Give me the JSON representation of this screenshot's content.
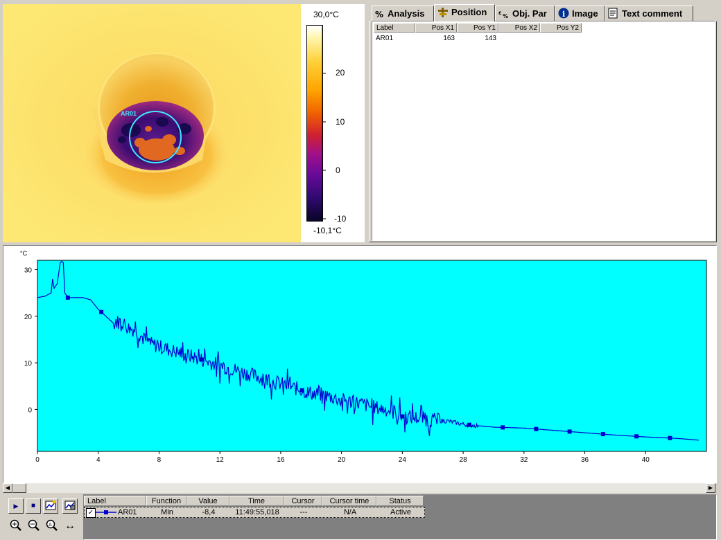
{
  "thermal": {
    "roi_label": "AR01",
    "scale_max": "30,0°C",
    "scale_min": "-10,1°C",
    "scale_ticks": [
      "20",
      "10",
      "0",
      "-10"
    ]
  },
  "tabs": [
    {
      "label": "Analysis",
      "icon": "analysis-icon"
    },
    {
      "label": "Position",
      "icon": "position-icon"
    },
    {
      "label": "Obj. Par",
      "icon": "object-parameters-icon"
    },
    {
      "label": "Image",
      "icon": "info-icon"
    },
    {
      "label": "Text comment",
      "icon": "text-comment-icon"
    }
  ],
  "position_table": {
    "columns": [
      "Label",
      "Pos X1",
      "Pos Y1",
      "Pos X2",
      "Pos Y2"
    ],
    "rows": [
      {
        "label": "AR01",
        "pos_x1": "163",
        "pos_y1": "143",
        "pos_x2": "",
        "pos_y2": ""
      }
    ]
  },
  "chart_data": {
    "type": "line",
    "ylabel": "°C",
    "xlim": [
      0,
      44
    ],
    "ylim": [
      -9,
      32
    ],
    "x_ticks": [
      "0",
      "4",
      "8",
      "12",
      "16",
      "20",
      "24",
      "28",
      "32",
      "36",
      "40"
    ],
    "y_ticks": [
      "30",
      "20",
      "10",
      "0"
    ],
    "background": "#00ffff",
    "line_color": "#0000cc",
    "series": [
      {
        "name": "AR01",
        "x": [
          0,
          0.5,
          0.9,
          1.0,
          1.1,
          1.3,
          1.5,
          1.6,
          1.7,
          1.8,
          1.9,
          2.0,
          2.5,
          3.0,
          3.5,
          4.0,
          4.5,
          5.0,
          5.5,
          6.0,
          6.5,
          7.0,
          7.5,
          8.0,
          8.5,
          9.0,
          9.5,
          10,
          10.5,
          11,
          11.5,
          12,
          13,
          14,
          15,
          16,
          17,
          18,
          19,
          20,
          21,
          22,
          23,
          24,
          25,
          26,
          27,
          28,
          30,
          32,
          34,
          36,
          38,
          40,
          42,
          43.5
        ],
        "y": [
          24,
          24.3,
          25,
          28,
          26,
          27,
          31.5,
          31.8,
          31.5,
          25,
          24.5,
          24,
          24,
          24,
          23.5,
          21.5,
          20,
          18.5,
          19,
          17.5,
          17,
          15,
          14,
          13.5,
          13,
          12.5,
          12,
          11.5,
          11,
          10.5,
          10,
          9.5,
          8.5,
          7.5,
          6.5,
          5.5,
          4.5,
          3.5,
          3.0,
          2.0,
          1.5,
          0.5,
          0,
          -1.5,
          -1.8,
          -2.3,
          -2.5,
          -3.2,
          -3.8,
          -4.0,
          -4.5,
          -5.0,
          -5.5,
          -5.9,
          -6.2,
          -6.6
        ]
      }
    ]
  },
  "legend": {
    "columns": [
      "Label",
      "Function",
      "Value",
      "Time",
      "Cursor",
      "Cursor time",
      "Status"
    ],
    "rows": [
      {
        "checked": "✓",
        "label": "AR01",
        "function": "Min",
        "value": "-8,4",
        "time": "11:49:55,018",
        "cursor": "---",
        "cursor_time": "N/A",
        "status": "Active"
      }
    ]
  },
  "controls": {
    "play": "▶",
    "stop": "■",
    "zoom_in": "+",
    "zoom_out": "−",
    "zoom_fit": "↔"
  }
}
